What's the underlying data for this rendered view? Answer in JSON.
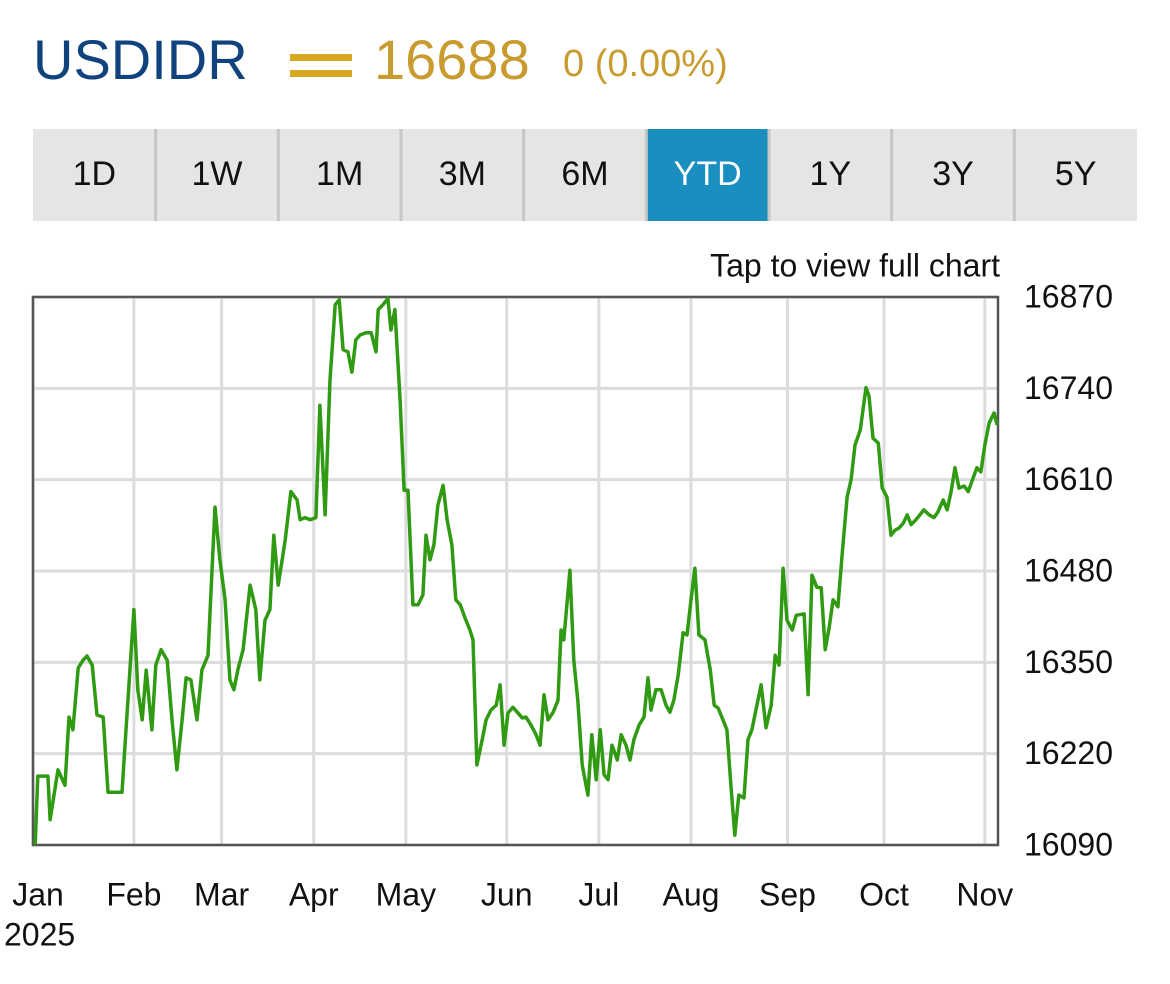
{
  "header": {
    "symbol": "USDIDR",
    "price": 16688,
    "change": "0 (0.00%)"
  },
  "tabs": [
    "1D",
    "1W",
    "1M",
    "3M",
    "6M",
    "YTD",
    "1Y",
    "3Y",
    "5Y"
  ],
  "active_tab": "YTD",
  "chart_data": {
    "type": "line",
    "annotation": "Tap to view full chart",
    "color": "#2f9a12",
    "grid": true,
    "yaxis_side": "right",
    "year": "2025",
    "xlim": [
      0,
      220
    ],
    "xticks": [
      {
        "value": 0,
        "label": "Jan"
      },
      {
        "value": 23,
        "label": "Feb"
      },
      {
        "value": 43,
        "label": "Mar"
      },
      {
        "value": 64,
        "label": "Apr"
      },
      {
        "value": 85,
        "label": "May"
      },
      {
        "value": 108,
        "label": "Jun"
      },
      {
        "value": 129,
        "label": "Jul"
      },
      {
        "value": 150,
        "label": "Aug"
      },
      {
        "value": 172,
        "label": "Sep"
      },
      {
        "value": 194,
        "label": "Oct"
      },
      {
        "value": 217,
        "label": "Nov"
      }
    ],
    "ylim": [
      16090,
      16870
    ],
    "yticks": [
      16090,
      16220,
      16350,
      16480,
      16610,
      16740,
      16870
    ],
    "x": [
      0.5,
      1.1,
      3.4,
      3.9,
      5.7,
      7.3,
      8.2,
      9.1,
      10.3,
      11.4,
      12.3,
      13.5,
      14.6,
      16.0,
      17.1,
      20.3,
      21.2,
      23.0,
      23.9,
      24.9,
      25.8,
      27.1,
      28.0,
      29.2,
      30.6,
      31.7,
      32.8,
      34.0,
      34.9,
      36.0,
      37.4,
      38.5,
      39.9,
      41.5,
      42.6,
      43.8,
      44.9,
      45.8,
      46.7,
      47.9,
      49.5,
      50.8,
      51.7,
      52.9,
      54.0,
      54.9,
      55.9,
      57.5,
      58.8,
      60.2,
      60.9,
      62.0,
      63.2,
      64.5,
      65.4,
      66.6,
      67.7,
      68.9,
      69.8,
      70.7,
      71.8,
      72.7,
      73.6,
      74.6,
      75.9,
      77.1,
      78.2,
      78.7,
      79.8,
      80.9,
      81.6,
      82.5,
      83.7,
      84.6,
      85.5,
      86.6,
      87.8,
      88.9,
      89.6,
      90.5,
      91.4,
      92.3,
      93.5,
      94.4,
      95.5,
      96.4,
      97.4,
      98.5,
      99.6,
      100.3,
      101.2,
      102.4,
      103.3,
      104.4,
      105.6,
      106.5,
      107.4,
      108.3,
      109.4,
      110.4,
      111.5,
      112.4,
      113.5,
      114.7,
      115.6,
      116.5,
      117.4,
      118.6,
      119.7,
      120.4,
      121.0,
      122.4,
      123.3,
      124.2,
      125.2,
      126.5,
      127.4,
      128.4,
      129.3,
      130.2,
      131.1,
      132.0,
      133.2,
      134.1,
      135.2,
      136.1,
      137.0,
      138.2,
      139.3,
      140.2,
      140.9,
      142.0,
      143.2,
      144.3,
      145.2,
      146.1,
      147.1,
      148.2,
      149.1,
      150.0,
      150.9,
      151.8,
      153.2,
      154.4,
      155.3,
      156.2,
      157.3,
      158.2,
      159.1,
      160.0,
      160.9,
      162.1,
      163.0,
      163.9,
      164.8,
      166.0,
      167.1,
      168.3,
      169.2,
      170.1,
      171.0,
      171.9,
      173.1,
      174.0,
      175.8,
      176.7,
      177.6,
      178.7,
      179.7,
      180.6,
      181.5,
      182.4,
      183.5,
      184.5,
      185.6,
      186.5,
      187.4,
      188.6,
      189.9,
      190.6,
      191.5,
      192.7,
      193.6,
      194.7,
      195.6,
      196.5,
      197.4,
      198.4,
      199.3,
      200.2,
      201.3,
      202.2,
      203.1,
      204.3,
      205.4,
      206.3,
      207.5,
      208.4,
      209.3,
      210.2,
      211.1,
      212.3,
      213.2,
      214.3,
      215.2,
      216.1,
      217.0,
      218.0,
      219.1,
      219.8
    ],
    "values": [
      16090,
      16188,
      16188,
      16126,
      16197,
      16175,
      16272,
      16254,
      16342,
      16353,
      16359,
      16346,
      16275,
      16272,
      16165,
      16165,
      16254,
      16425,
      16311,
      16268,
      16339,
      16254,
      16346,
      16368,
      16353,
      16268,
      16197,
      16268,
      16328,
      16325,
      16268,
      16339,
      16360,
      16571,
      16496,
      16439,
      16325,
      16311,
      16339,
      16368,
      16460,
      16425,
      16325,
      16410,
      16425,
      16531,
      16460,
      16524,
      16593,
      16581,
      16553,
      16556,
      16553,
      16556,
      16716,
      16560,
      16752,
      16859,
      16866,
      16795,
      16792,
      16763,
      16809,
      16816,
      16819,
      16819,
      16792,
      16852,
      16859,
      16868,
      16823,
      16852,
      16723,
      16595,
      16595,
      16432,
      16432,
      16446,
      16531,
      16496,
      16517,
      16574,
      16602,
      16553,
      16517,
      16439,
      16432,
      16413,
      16396,
      16382,
      16204,
      16240,
      16268,
      16282,
      16289,
      16318,
      16232,
      16278,
      16286,
      16279,
      16271,
      16272,
      16261,
      16247,
      16232,
      16304,
      16268,
      16279,
      16296,
      16396,
      16382,
      16481,
      16353,
      16296,
      16204,
      16161,
      16247,
      16183,
      16254,
      16190,
      16183,
      16232,
      16211,
      16247,
      16232,
      16211,
      16240,
      16261,
      16272,
      16328,
      16282,
      16311,
      16311,
      16289,
      16279,
      16296,
      16332,
      16392,
      16389,
      16439,
      16484,
      16389,
      16382,
      16339,
      16289,
      16285,
      16268,
      16254,
      16175,
      16104,
      16161,
      16157,
      16240,
      16254,
      16282,
      16318,
      16257,
      16289,
      16360,
      16346,
      16484,
      16410,
      16396,
      16417,
      16419,
      16304,
      16474,
      16457,
      16456,
      16368,
      16399,
      16439,
      16429,
      16506,
      16585,
      16610,
      16659,
      16681,
      16741,
      16729,
      16669,
      16662,
      16598,
      16585,
      16531,
      16538,
      16541,
      16548,
      16560,
      16546,
      16553,
      16560,
      16567,
      16560,
      16556,
      16564,
      16581,
      16567,
      16593,
      16627,
      16598,
      16601,
      16593,
      16612,
      16627,
      16621,
      16659,
      16691,
      16705,
      16688
    ]
  }
}
